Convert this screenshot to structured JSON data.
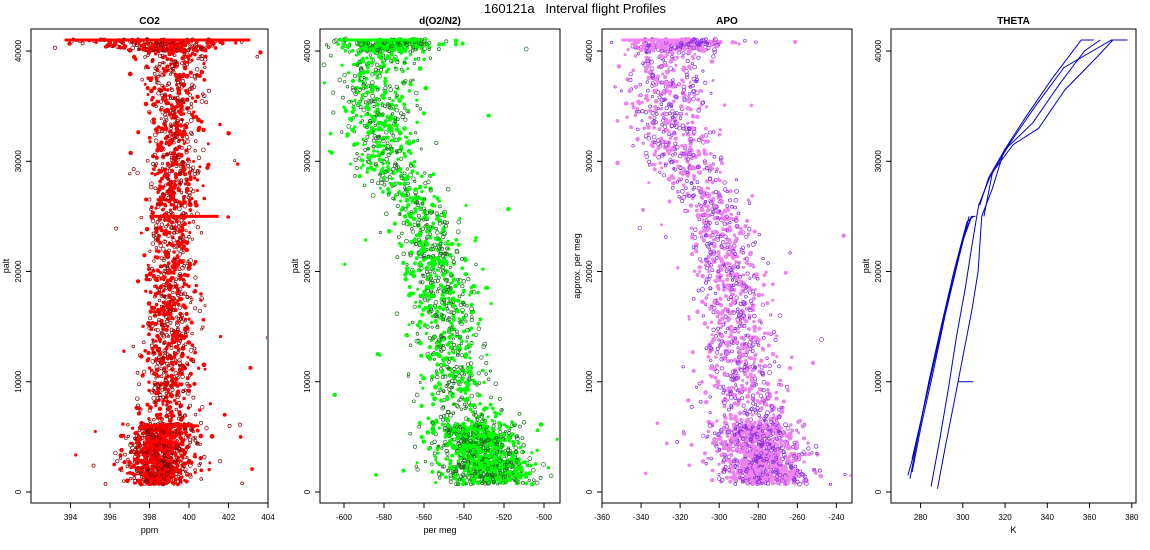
{
  "figure": {
    "title": "160121a   Interval flight Profiles"
  },
  "chart_data": [
    {
      "type": "scatter",
      "title": "CO2",
      "xlabel": "ppm",
      "ylabel": "palt",
      "xlim": [
        392,
        404
      ],
      "ylim": [
        -1000,
        42000
      ],
      "xticks": [
        394,
        396,
        398,
        400,
        402,
        404
      ],
      "yticks": [
        0,
        10000,
        20000,
        30000,
        40000
      ],
      "grid": false,
      "colors": {
        "fill": "#ff0000",
        "edge": "#8b0000"
      },
      "profile": {
        "alt": [
          800,
          3000,
          6000,
          10000,
          15000,
          20000,
          25000,
          30000,
          35000,
          40000,
          41000
        ],
        "center": [
          398.4,
          398.5,
          398.8,
          399.0,
          399.1,
          399.1,
          399.2,
          399.3,
          399.3,
          399.0,
          398.2
        ],
        "spread": [
          0.7,
          0.8,
          0.8,
          0.7,
          0.6,
          0.6,
          0.6,
          0.6,
          0.7,
          0.9,
          2.0
        ]
      },
      "level_lines": [
        {
          "alt": 41000,
          "x": [
            393.7,
            403.1
          ]
        },
        {
          "alt": 25000,
          "x": [
            398.0,
            401.5
          ]
        },
        {
          "alt": 6000,
          "x": [
            397.5,
            400.5
          ]
        }
      ]
    },
    {
      "type": "scatter",
      "title": "d(O2/N2)",
      "xlabel": "per meg",
      "ylabel": "palt",
      "xlim": [
        -612,
        -492
      ],
      "ylim": [
        -1000,
        42000
      ],
      "xticks": [
        -600,
        -580,
        -560,
        -540,
        -520,
        -500
      ],
      "yticks": [
        0,
        10000,
        20000,
        30000,
        40000
      ],
      "grid": false,
      "colors": {
        "fill": "#00ff00",
        "edge": "#1a6b1a"
      },
      "profile": {
        "alt": [
          800,
          3000,
          6000,
          10000,
          15000,
          20000,
          25000,
          30000,
          35000,
          40000,
          41000
        ],
        "center": [
          -525,
          -530,
          -537,
          -545,
          -550,
          -553,
          -560,
          -578,
          -585,
          -582,
          -575
        ],
        "spread": [
          11,
          10,
          11,
          9,
          8,
          8,
          8,
          9,
          9,
          10,
          14
        ]
      },
      "level_lines": [
        {
          "alt": 41000,
          "x": [
            -602,
            -562
          ]
        }
      ]
    },
    {
      "type": "scatter",
      "title": "APO",
      "xlabel": "",
      "ylabel": "approx. per meg",
      "xlim": [
        -360,
        -232
      ],
      "ylim": [
        -1000,
        42000
      ],
      "xticks": [
        -360,
        -340,
        -320,
        -300,
        -280,
        -260,
        -240
      ],
      "yticks": [
        0,
        10000,
        20000,
        30000,
        40000
      ],
      "grid": false,
      "colors": {
        "fill": "#ee82ee",
        "edge": "#8a2be2"
      },
      "profile": {
        "alt": [
          800,
          3000,
          6000,
          10000,
          15000,
          20000,
          25000,
          30000,
          35000,
          40000,
          41000
        ],
        "center": [
          -275,
          -278,
          -283,
          -288,
          -292,
          -295,
          -300,
          -320,
          -328,
          -325,
          -318
        ],
        "spread": [
          12,
          11,
          11,
          10,
          9,
          9,
          9,
          10,
          10,
          10,
          14
        ]
      },
      "level_lines": [
        {
          "alt": 41000,
          "x": [
            -350,
            -315
          ]
        }
      ]
    },
    {
      "type": "line",
      "title": "THETA",
      "xlabel": "K",
      "ylabel": "palt",
      "xlim": [
        266,
        382
      ],
      "ylim": [
        -1000,
        42000
      ],
      "xticks": [
        280,
        300,
        320,
        340,
        360,
        380
      ],
      "yticks": [
        0,
        10000,
        20000,
        30000,
        40000
      ],
      "grid": false,
      "colors": {
        "line": "#0000cd"
      },
      "series": [
        {
          "points": [
            [
              274,
              1500
            ],
            [
              278,
              4000
            ],
            [
              282,
              8000
            ],
            [
              288,
              13000
            ],
            [
              294,
              18000
            ],
            [
              300,
              23000
            ],
            [
              304,
              25000
            ],
            [
              306,
              25000
            ]
          ]
        },
        {
          "points": [
            [
              275,
              1200
            ],
            [
              279,
              5000
            ],
            [
              284,
              10000
            ],
            [
              290,
              15000
            ],
            [
              296,
              20000
            ],
            [
              302,
              24500
            ],
            [
              305,
              25000
            ]
          ]
        },
        {
          "points": [
            [
              276,
              1800
            ],
            [
              280,
              6000
            ],
            [
              286,
              11000
            ],
            [
              292,
              16000
            ],
            [
              298,
              21000
            ],
            [
              303,
              25000
            ]
          ]
        },
        {
          "points": [
            [
              276,
              3000
            ],
            [
              281,
              7500
            ],
            [
              287,
              12500
            ],
            [
              293,
              17500
            ],
            [
              299,
              22500
            ],
            [
              304,
              25000
            ]
          ]
        },
        {
          "points": [
            [
              288,
              300
            ],
            [
              292,
              4000
            ],
            [
              296,
              8000
            ],
            [
              300,
              12000
            ],
            [
              304,
              16500
            ],
            [
              307,
              20000
            ],
            [
              309,
              25000
            ],
            [
              314,
              27500
            ],
            [
              320,
              31000
            ],
            [
              330,
              34000
            ],
            [
              342,
              37500
            ],
            [
              356,
              41000
            ],
            [
              362,
              41000
            ]
          ]
        },
        {
          "points": [
            [
              285,
              500
            ],
            [
              289,
              5000
            ],
            [
              293,
              9500
            ],
            [
              297,
              14000
            ],
            [
              301,
              18500
            ],
            [
              304,
              22000
            ],
            [
              307,
              26000
            ],
            [
              313,
              28500
            ],
            [
              322,
              31500
            ],
            [
              334,
              35000
            ],
            [
              348,
              38500
            ],
            [
              370,
              41000
            ],
            [
              378,
              41000
            ]
          ]
        },
        {
          "points": [
            [
              310,
              25000
            ],
            [
              314,
              29000
            ],
            [
              324,
              31500
            ],
            [
              336,
              33000
            ],
            [
              348,
              36500
            ],
            [
              364,
              39500
            ],
            [
              371,
              41000
            ]
          ]
        },
        {
          "points": [
            [
              308,
              26000
            ],
            [
              312,
              28500
            ],
            [
              320,
              31000
            ],
            [
              333,
              33500
            ],
            [
              346,
              37000
            ],
            [
              358,
              40000
            ],
            [
              365,
              41000
            ]
          ]
        }
      ],
      "level_lines": [
        {
          "alt": 10000,
          "x": [
            298,
            305
          ]
        }
      ]
    }
  ]
}
